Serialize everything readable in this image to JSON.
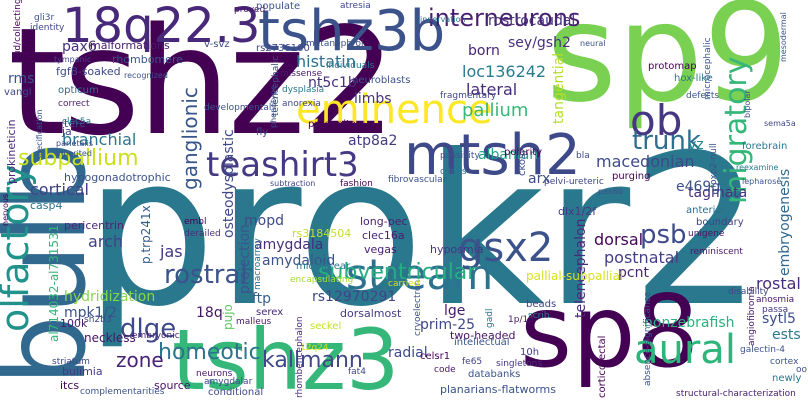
{
  "palette": {
    "dark_purple": "#440154",
    "indigo": "#414487",
    "blue": "#31688e",
    "teal": "#21918c",
    "green": "#35b779",
    "lime": "#90d743",
    "yellow": "#e6e419"
  },
  "words": [
    {
      "text": "prokr2",
      "color": "#2a788e"
    },
    {
      "text": "tshz2",
      "color": "#440154"
    },
    {
      "text": "sp9",
      "color": "#7ad151"
    },
    {
      "text": "bulb",
      "color": "#31688e"
    },
    {
      "text": "sp8",
      "color": "#440154"
    },
    {
      "text": "tshz3",
      "color": "#35b779"
    },
    {
      "text": "tshz3b",
      "color": "#3b528b"
    },
    {
      "text": "18q22.3",
      "color": "#482878"
    },
    {
      "text": "mtsh2",
      "color": "#3e4989"
    },
    {
      "text": "olfactory",
      "color": "#21918c"
    },
    {
      "text": "stream",
      "color": "#2c728e"
    },
    {
      "text": "eminence",
      "color": "#fde725"
    },
    {
      "text": "teashirt3",
      "color": "#443983"
    },
    {
      "text": "ob",
      "color": "#453781"
    },
    {
      "text": "migratory",
      "color": "#35b779"
    },
    {
      "text": "gsx2",
      "color": "#3b528b"
    },
    {
      "text": "aural",
      "color": "#2fb47c"
    },
    {
      "text": "interneurons",
      "color": "#481f70"
    },
    {
      "text": "subpallium",
      "color": "#c8e020"
    },
    {
      "text": "rostral",
      "color": "#3b528b"
    },
    {
      "text": "subventricular",
      "color": "#27ad81"
    },
    {
      "text": "ganglionic",
      "color": "#39568c"
    },
    {
      "text": "trunk",
      "color": "#2e6e8e"
    },
    {
      "text": "psb",
      "color": "#3e4a89"
    },
    {
      "text": "dlge",
      "color": "#3e4989"
    },
    {
      "text": "homeotic",
      "color": "#2c738e"
    },
    {
      "text": "kallmann",
      "color": "#3f4889"
    },
    {
      "text": "zone",
      "color": "#482475"
    },
    {
      "text": "rostrocaudal",
      "color": "#46327e"
    },
    {
      "text": "loc136242",
      "color": "#287c8e"
    },
    {
      "text": "histatin",
      "color": "#2d708e"
    },
    {
      "text": "pallium",
      "color": "#37b878"
    },
    {
      "text": "lateral",
      "color": "#472c7a"
    },
    {
      "text": "born",
      "color": "#482475"
    },
    {
      "text": "sey/gsh2",
      "color": "#46307e"
    },
    {
      "text": "tangential",
      "color": "#b5de2b"
    },
    {
      "text": "macedonian",
      "color": "#3e4a89"
    },
    {
      "text": "albanian",
      "color": "#20a486"
    },
    {
      "text": "branchial",
      "color": "#2a768e"
    },
    {
      "text": "cortical",
      "color": "#414287"
    },
    {
      "text": "pax6",
      "color": "#46337f"
    },
    {
      "text": "nt5c1b",
      "color": "#472d7b"
    },
    {
      "text": "limbs",
      "color": "#46327e"
    },
    {
      "text": "atp8a2",
      "color": "#443983"
    },
    {
      "text": "osteodysplastic",
      "color": "#3f4788"
    },
    {
      "text": "arch",
      "color": "#414287"
    },
    {
      "text": "mopd",
      "color": "#3e4989"
    },
    {
      "text": "amygdala",
      "color": "#472d7b"
    },
    {
      "text": "projection",
      "color": "#39558c"
    },
    {
      "text": "jas",
      "color": "#453781"
    },
    {
      "text": "amydaloid",
      "color": "#3b528b"
    },
    {
      "text": "ftp",
      "color": "#355f8d"
    },
    {
      "text": "rs12970291",
      "color": "#404688"
    },
    {
      "text": "18q",
      "color": "#471365"
    },
    {
      "text": "pujo",
      "color": "#5ec962"
    },
    {
      "text": "mpk1/2",
      "color": "#3b528b"
    },
    {
      "text": "al714032-al731531",
      "color": "#34b679"
    },
    {
      "text": "hydridization",
      "color": "#89d548"
    },
    {
      "text": "dorsal",
      "color": "#450457"
    },
    {
      "text": "postnatal",
      "color": "#433e85"
    },
    {
      "text": "pcnt",
      "color": "#482475"
    },
    {
      "text": "telencephalon",
      "color": "#472a7a"
    },
    {
      "text": "tagmata",
      "color": "#46307e"
    },
    {
      "text": "embryogenesis",
      "color": "#31688e"
    },
    {
      "text": "rostal",
      "color": "#472d7b"
    },
    {
      "text": "sytl5",
      "color": "#3d4d8a"
    },
    {
      "text": "ests",
      "color": "#2a768e"
    },
    {
      "text": "nonzebrafish",
      "color": "#2ab07f"
    },
    {
      "text": "prim-25",
      "color": "#3f4889"
    },
    {
      "text": "lge",
      "color": "#48186a"
    },
    {
      "text": "pallial-subpallial",
      "color": "#d8e219"
    },
    {
      "text": "radial",
      "color": "#3e4a89"
    },
    {
      "text": "neckless",
      "color": "#481467"
    },
    {
      "text": "vz",
      "color": "#25848e"
    },
    {
      "text": "arx",
      "color": "#3d4d8a"
    },
    {
      "text": "e469g",
      "color": "#3b528b"
    },
    {
      "text": "sp8",
      "color": "#440154"
    },
    {
      "text": "fgf8-soaked",
      "color": "#3f4889"
    },
    {
      "text": "malformations",
      "color": "#481a6c"
    },
    {
      "text": "rhombomere",
      "color": "#3b528b"
    },
    {
      "text": "rms",
      "color": "#3b528b"
    },
    {
      "text": "prokineticin",
      "color": "#482878"
    },
    {
      "text": "terc",
      "color": "#414287"
    },
    {
      "text": "ja",
      "color": "#414287"
    },
    {
      "text": "hypogonadotrophic",
      "color": "#3b528b"
    },
    {
      "text": "casp4",
      "color": "#2c728e"
    },
    {
      "text": "p.trp241x",
      "color": "#365c8d"
    },
    {
      "text": "pericentrin",
      "color": "#482878"
    },
    {
      "text": "100k",
      "color": "#481b6d"
    },
    {
      "text": "sh2b3",
      "color": "#3f4788"
    },
    {
      "text": "striatum",
      "color": "#3e4989"
    },
    {
      "text": "bulimia",
      "color": "#443983"
    },
    {
      "text": "itcs",
      "color": "#440154"
    },
    {
      "text": "complementarities",
      "color": "#3b528b"
    },
    {
      "text": "source",
      "color": "#471063"
    },
    {
      "text": "conditional",
      "color": "#3f4889"
    },
    {
      "text": "neurons",
      "color": "#481467"
    },
    {
      "text": "amygdalar",
      "color": "#3f4788"
    },
    {
      "text": "serex",
      "color": "#472a7a"
    },
    {
      "text": "malleus",
      "color": "#481c6e"
    },
    {
      "text": "embryonic",
      "color": "#482576"
    },
    {
      "text": "seckel",
      "color": "#c2df23"
    },
    {
      "text": "dorsalmost",
      "color": "#443983"
    },
    {
      "text": "middle-ear",
      "color": "#2a788e"
    },
    {
      "text": "encapsulating",
      "color": "#a5db36"
    },
    {
      "text": "long-pec",
      "color": "#481f70"
    },
    {
      "text": "clec16a",
      "color": "#481f70"
    },
    {
      "text": "vegas",
      "color": "#482071"
    },
    {
      "text": "rs3184504",
      "color": "#c2df23"
    },
    {
      "text": "macroarray",
      "color": "#2e6d8e"
    },
    {
      "text": "derailed",
      "color": "#472f7d"
    },
    {
      "text": "embl",
      "color": "#440154"
    },
    {
      "text": "cryoelectron",
      "color": "#3b528b"
    },
    {
      "text": "carried",
      "color": "#d2e21b"
    },
    {
      "text": "hyposmia",
      "color": "#453581"
    },
    {
      "text": "two-headed",
      "color": "#481467"
    },
    {
      "text": "dlx1/2f",
      "color": "#443983"
    },
    {
      "text": "anterior",
      "color": "#2d708e"
    },
    {
      "text": "boundary",
      "color": "#414287"
    },
    {
      "text": "unigene",
      "color": "#481467"
    },
    {
      "text": "reminiscent",
      "color": "#481769"
    },
    {
      "text": "beads",
      "color": "#404688"
    },
    {
      "text": "scrib",
      "color": "#2a788e"
    },
    {
      "text": "gadl",
      "color": "#2a788e"
    },
    {
      "text": "1p/1p",
      "color": "#481467"
    },
    {
      "text": "intellectual",
      "color": "#3b528b"
    },
    {
      "text": "celsr1",
      "color": "#440154"
    },
    {
      "text": "10h",
      "color": "#453781"
    },
    {
      "text": "singletons",
      "color": "#46337f"
    },
    {
      "text": "code",
      "color": "#481467"
    },
    {
      "text": "fat4",
      "color": "#3f4788"
    },
    {
      "text": "fe65",
      "color": "#414287"
    },
    {
      "text": "databanks",
      "color": "#3b528b"
    },
    {
      "text": "planarians-flatworms",
      "color": "#3b528b"
    },
    {
      "text": "corticotectal",
      "color": "#440154"
    },
    {
      "text": "absence-significance",
      "color": "#3b528b"
    },
    {
      "text": "structural-characterization",
      "color": "#482071"
    },
    {
      "text": "newly",
      "color": "#2a788e"
    },
    {
      "text": "galectin-4",
      "color": "#3b528b"
    },
    {
      "text": "cortex",
      "color": "#3b528b"
    },
    {
      "text": "angiofibroma",
      "color": "#481a6c"
    },
    {
      "text": "anosmia",
      "color": "#481467"
    },
    {
      "text": "passa",
      "color": "#453781"
    },
    {
      "text": "disability",
      "color": "#3f4788"
    },
    {
      "text": "oo",
      "color": "#3b528b"
    },
    {
      "text": "12q24",
      "color": "#c8e020"
    },
    {
      "text": "rhombencephalon",
      "color": "#482878"
    },
    {
      "text": "rs2736100",
      "color": "#3f4889"
    },
    {
      "text": "metanephroi",
      "color": "#3b528b"
    },
    {
      "text": "missense",
      "color": "#481a6c"
    },
    {
      "text": "individuals",
      "color": "#2a788e"
    },
    {
      "text": "neuroblasts",
      "color": "#3b528b"
    },
    {
      "text": "anorexia",
      "color": "#3f4788"
    },
    {
      "text": "progenitors",
      "color": "#440154"
    },
    {
      "text": "dysplasia",
      "color": "#2a788e"
    },
    {
      "text": "phenotype",
      "color": "#3e4989"
    },
    {
      "text": "developmental",
      "color": "#3b528b"
    },
    {
      "text": "correct",
      "color": "#481f70"
    },
    {
      "text": "opticum",
      "color": "#31688e"
    },
    {
      "text": "clec5a",
      "color": "#2a788e"
    },
    {
      "text": "vangl",
      "color": "#3f4889"
    },
    {
      "text": "recognized",
      "color": "#3b528b"
    },
    {
      "text": "tympanic",
      "color": "#3f4889"
    },
    {
      "text": "identity",
      "color": "#3f4788"
    },
    {
      "text": "gli3r",
      "color": "#3b528b"
    },
    {
      "text": "bud/collecting",
      "color": "#440154"
    },
    {
      "text": "specification",
      "color": "#3b528b"
    },
    {
      "text": "inherited",
      "color": "#3b528b"
    },
    {
      "text": "nervous",
      "color": "#440154"
    },
    {
      "text": "v-svz",
      "color": "#3e4989"
    },
    {
      "text": "proved",
      "color": "#481467"
    },
    {
      "text": "populate",
      "color": "#3b528b"
    },
    {
      "text": "atresia",
      "color": "#3f4788"
    },
    {
      "text": "innervation",
      "color": "#2a788e"
    },
    {
      "text": "neural",
      "color": "#3b528b"
    },
    {
      "text": "microcephalic",
      "color": "#3b528b"
    },
    {
      "text": "protomap",
      "color": "#440154"
    },
    {
      "text": "hox-like",
      "color": "#2a788e"
    },
    {
      "text": "mesodermal",
      "color": "#3b528b"
    },
    {
      "text": "fragmentary",
      "color": "#3f4788"
    },
    {
      "text": "defects",
      "color": "#3b528b"
    },
    {
      "text": "sema5a",
      "color": "#3f4788"
    },
    {
      "text": "forebrain",
      "color": "#2a788e"
    },
    {
      "text": "polarity",
      "color": "#440154"
    },
    {
      "text": "ckos",
      "color": "#3b528b"
    },
    {
      "text": "bla",
      "color": "#3f4788"
    },
    {
      "text": "foxp2-null",
      "color": "#3b528b"
    },
    {
      "text": "reexamine",
      "color": "#2a788e"
    },
    {
      "text": "bipolar",
      "color": "#3e4989"
    },
    {
      "text": "purging",
      "color": "#440154"
    },
    {
      "text": "lepharose",
      "color": "#3b528b"
    },
    {
      "text": "pelvi-ureteric",
      "color": "#3f4788"
    },
    {
      "text": "cdnas",
      "color": "#2a788e"
    },
    {
      "text": "passivity",
      "color": "#3b528b"
    },
    {
      "text": "fashion",
      "color": "#440154"
    },
    {
      "text": "fibrovascular",
      "color": "#3b528b"
    },
    {
      "text": "subtraction",
      "color": "#3f4788"
    },
    {
      "text": "telencephalic",
      "color": "#3b528b"
    },
    {
      "text": "fly",
      "color": "#3f4889"
    },
    {
      "text": "pax6b",
      "color": "#3b528b"
    },
    {
      "text": "parietalis",
      "color": "#3f4788"
    }
  ]
}
